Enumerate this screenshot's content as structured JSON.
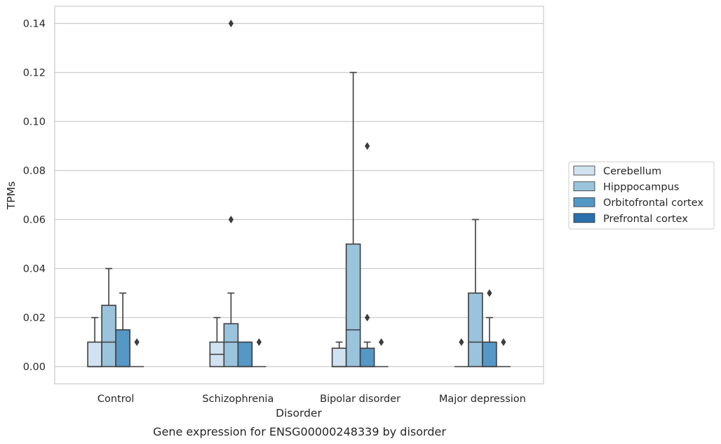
{
  "chart_data": {
    "type": "box",
    "title": "",
    "caption": "Gene expression for ENSG00000248339 by disorder",
    "xlabel": "Disorder",
    "ylabel": "TPMs",
    "categories": [
      "Control",
      "Schizophrenia",
      "Bipolar disorder",
      "Major depression"
    ],
    "ylim": [
      -0.007,
      0.147
    ],
    "yticks": [
      0.0,
      0.02,
      0.04,
      0.06,
      0.08,
      0.1,
      0.12,
      0.14
    ],
    "ytick_labels": [
      "0.00",
      "0.02",
      "0.04",
      "0.06",
      "0.08",
      "0.10",
      "0.12",
      "0.14"
    ],
    "grid": "horizontal",
    "legend_position": "right",
    "series": [
      {
        "name": "Cerebellum",
        "color": "#d1e2f1",
        "boxes": [
          {
            "whisker_low": 0,
            "q1": 0,
            "median": 0,
            "q3": 0.01,
            "whisker_high": 0.02,
            "outliers": []
          },
          {
            "whisker_low": 0,
            "q1": 0,
            "median": 0.005,
            "q3": 0.01,
            "whisker_high": 0.02,
            "outliers": []
          },
          {
            "whisker_low": 0,
            "q1": 0,
            "median": 0,
            "q3": 0.0075,
            "whisker_high": 0.01,
            "outliers": []
          },
          {
            "whisker_low": 0,
            "q1": 0,
            "median": 0,
            "q3": 0,
            "whisker_high": 0,
            "outliers": []
          }
        ]
      },
      {
        "name": "Hipppocampus",
        "color": "#9ac3dc",
        "boxes": [
          {
            "whisker_low": 0,
            "q1": 0,
            "median": 0.01,
            "q3": 0.025,
            "whisker_high": 0.04,
            "outliers": []
          },
          {
            "whisker_low": 0,
            "q1": 0,
            "median": 0.01,
            "q3": 0.0175,
            "whisker_high": 0.03,
            "outliers": [
              0.06,
              0.14
            ]
          },
          {
            "whisker_low": 0,
            "q1": 0,
            "median": 0.015,
            "q3": 0.05,
            "whisker_high": 0.12,
            "outliers": []
          },
          {
            "whisker_low": 0,
            "q1": 0,
            "median": 0.01,
            "q3": 0.03,
            "whisker_high": 0.06,
            "outliers": []
          }
        ]
      },
      {
        "name": "Orbitofrontal cortex",
        "color": "#5597c5",
        "boxes": [
          {
            "whisker_low": 0,
            "q1": 0,
            "median": 0,
            "q3": 0.015,
            "whisker_high": 0.03,
            "outliers": []
          },
          {
            "whisker_low": 0,
            "q1": 0,
            "median": 0,
            "q3": 0.01,
            "whisker_high": 0.01,
            "outliers": []
          },
          {
            "whisker_low": 0,
            "q1": 0,
            "median": 0,
            "q3": 0.0075,
            "whisker_high": 0.01,
            "outliers": [
              0.02,
              0.09
            ]
          },
          {
            "whisker_low": 0,
            "q1": 0,
            "median": 0,
            "q3": 0.01,
            "whisker_high": 0.02,
            "outliers": [
              0.03
            ]
          }
        ]
      },
      {
        "name": "Prefrontal cortex",
        "color": "#2a6fad",
        "boxes": [
          {
            "whisker_low": 0,
            "q1": 0,
            "median": 0,
            "q3": 0,
            "whisker_high": 0,
            "outliers": [
              0.01
            ]
          },
          {
            "whisker_low": 0,
            "q1": 0,
            "median": 0,
            "q3": 0,
            "whisker_high": 0,
            "outliers": [
              0.01
            ]
          },
          {
            "whisker_low": 0,
            "q1": 0,
            "median": 0,
            "q3": 0,
            "whisker_high": 0,
            "outliers": [
              0.01
            ]
          },
          {
            "whisker_low": 0,
            "q1": 0,
            "median": 0,
            "q3": 0,
            "whisker_high": 0,
            "outliers": [
              0.01
            ]
          }
        ]
      }
    ],
    "extra_outliers": [
      {
        "category": "Major depression",
        "series": "Cerebellum",
        "value": 0.01
      }
    ]
  }
}
